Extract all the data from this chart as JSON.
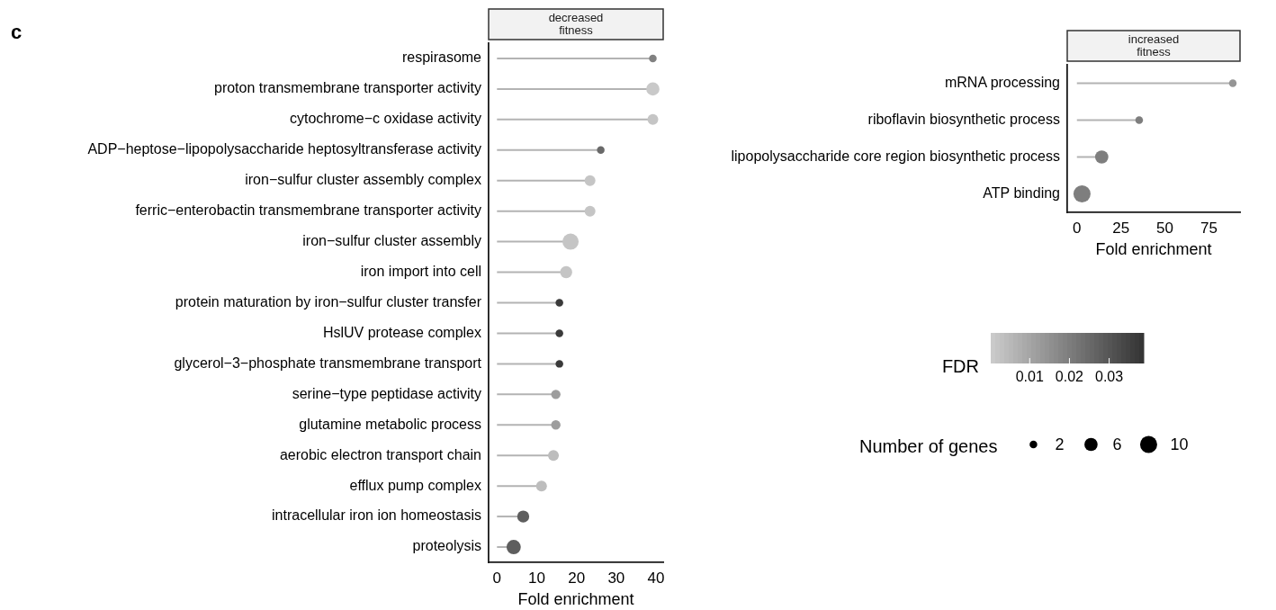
{
  "chart_data": [
    {
      "type": "lollipop",
      "orientation": "horizontal",
      "subtitle": "decreased fitness",
      "xlabel": "Fold enrichment",
      "annotations": [
        "c"
      ],
      "categories": [
        "respirasome",
        "proton transmembrane transporter activity",
        "cytochrome−c oxidase activity",
        "ADP−heptose−lipopolysaccharide heptosyltransferase activity",
        "iron−sulfur cluster assembly complex",
        "ferric−enterobactin transmembrane transporter activity",
        "iron−sulfur cluster assembly",
        "iron import into cell",
        "protein maturation by iron−sulfur cluster transfer",
        "HslUV protease complex",
        "glycerol−3−phosphate transmembrane transport",
        "serine−type peptidase activity",
        "glutamine metabolic process",
        "aerobic electron transport chain",
        "efflux pump complex",
        "intracellular iron ion homeostasis",
        "proteolysis"
      ],
      "values": [
        39.2,
        39.2,
        39.2,
        26.1,
        23.4,
        23.4,
        18.5,
        17.4,
        15.7,
        15.7,
        15.7,
        14.8,
        14.8,
        14.2,
        11.2,
        6.6,
        4.2
      ],
      "sizes": [
        2,
        6,
        4,
        2,
        4,
        4,
        9,
        5,
        2,
        2,
        2,
        3,
        3,
        4,
        4,
        5,
        7
      ],
      "cvalues": [
        0.019,
        0.001,
        0.002,
        0.025,
        0.002,
        0.002,
        0.002,
        0.002,
        0.037,
        0.037,
        0.037,
        0.012,
        0.012,
        0.004,
        0.004,
        0.028,
        0.028
      ],
      "clim": [
        0.0002,
        0.0387
      ],
      "cticks": [
        0.01,
        0.02,
        0.03
      ],
      "clabel": "FDR",
      "legend_title": "Number of genes",
      "size_legend": [
        2,
        6,
        10
      ],
      "xlim": [
        -2.1,
        41.8
      ],
      "xticks": [
        0,
        10,
        20,
        30,
        40
      ]
    },
    {
      "type": "lollipop",
      "orientation": "horizontal",
      "subtitle": "increased fitness",
      "xlabel": "Fold enrichment",
      "categories": [
        "mRNA processing",
        "riboflavin biosynthetic process",
        "lipopolysaccharide core region biosynthetic process",
        "ATP binding"
      ],
      "values": [
        88.6,
        35.4,
        14.1,
        2.9
      ],
      "sizes": [
        0.2,
        0.2,
        0.6,
        1
      ],
      "colors": [
        "#959595",
        "#7e7e7e",
        "#7e7e7e",
        "#7e7e7e"
      ],
      "xlim": [
        -5.5,
        92.7
      ],
      "xticks": [
        0,
        25,
        50,
        75
      ]
    }
  ]
}
